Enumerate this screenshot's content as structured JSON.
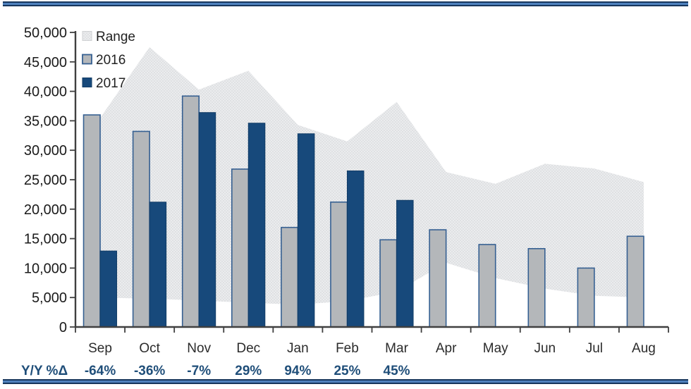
{
  "chart_data": {
    "type": "combo",
    "title": "",
    "categories": [
      "Sep",
      "Oct",
      "Nov",
      "Dec",
      "Jan",
      "Feb",
      "Mar",
      "Apr",
      "May",
      "Jun",
      "Jul",
      "Aug"
    ],
    "ylim": [
      0,
      50000
    ],
    "ytick_step": 5000,
    "ytick_labels": [
      "0",
      "5,000",
      "10,000",
      "15,000",
      "20,000",
      "25,000",
      "30,000",
      "35,000",
      "40,000",
      "45,000",
      "50,000"
    ],
    "legend": [
      "Range",
      "2016",
      "2017"
    ],
    "series": [
      {
        "name": "Range",
        "type": "area-range",
        "upper": [
          35500,
          47500,
          40300,
          43500,
          34300,
          31500,
          38200,
          26300,
          24300,
          27700,
          26900,
          24600
        ],
        "lower": [
          5000,
          4800,
          4500,
          4100,
          3800,
          4400,
          6000,
          10900,
          8300,
          6500,
          5300,
          5000
        ]
      },
      {
        "name": "2016",
        "type": "bar",
        "values": [
          36000,
          33200,
          39200,
          26800,
          16900,
          21200,
          14800,
          16500,
          14000,
          13300,
          10000,
          15400
        ]
      },
      {
        "name": "2017",
        "type": "bar",
        "values": [
          12900,
          21200,
          36400,
          34600,
          32800,
          26500,
          21500,
          null,
          null,
          null,
          null,
          null
        ]
      }
    ],
    "yoy_row": {
      "label": "Y/Y %Δ",
      "values": [
        "-64%",
        "-36%",
        "-7%",
        "29%",
        "94%",
        "25%",
        "45%",
        "",
        "",
        "",
        "",
        ""
      ]
    }
  },
  "colors": {
    "range_fill": "#ebecee",
    "range_dot": "#d7d9db",
    "bar_2016_fill": "#b4b7ba",
    "bar_2016_stroke": "#366092",
    "bar_2017_fill": "#17497b",
    "bar_2017_stroke": "#123c66",
    "axis": "#404040",
    "yoy_text": "#1f4e79",
    "border_dark": "#17365d",
    "border_light": "#4f81bd"
  }
}
